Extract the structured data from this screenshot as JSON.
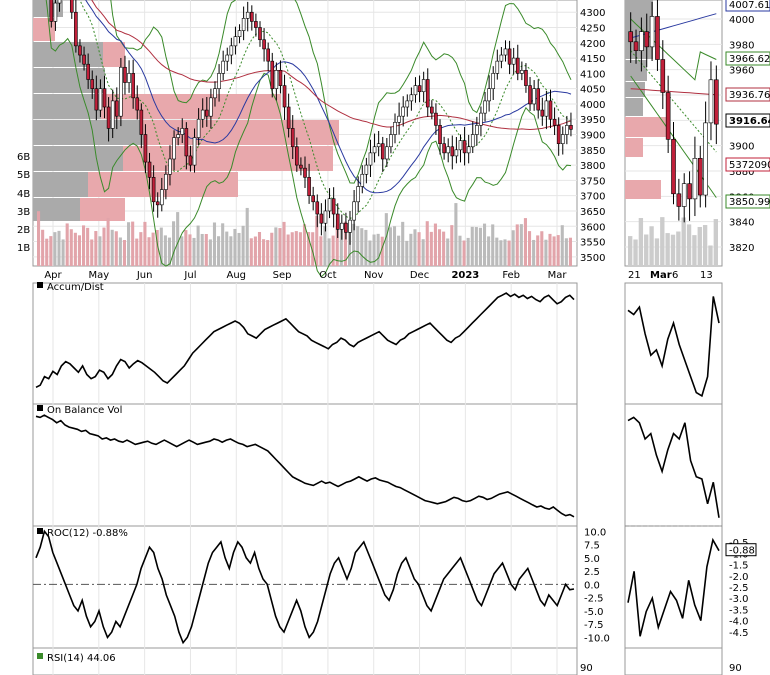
{
  "chart_data": [
    {
      "type": "candlestick",
      "title": "",
      "x_months": [
        "Apr",
        "May",
        "Jun",
        "Jul",
        "Aug",
        "Sep",
        "Oct",
        "Nov",
        "Dec",
        "2023",
        "Feb",
        "Mar"
      ],
      "y_ticks": [
        3500,
        3550,
        3600,
        3650,
        3700,
        3750,
        3800,
        3850,
        3900,
        3950,
        4000,
        4050,
        4100,
        4150,
        4200,
        4250,
        4300
      ],
      "ylim": [
        3470,
        4340
      ],
      "volume_ticks": [
        "1B",
        "2B",
        "3B",
        "4B",
        "5B",
        "6B"
      ],
      "close_series": [
        4520,
        4480,
        4390,
        4270,
        4330,
        4420,
        4530,
        4460,
        4300,
        4190,
        4160,
        4130,
        4080,
        4050,
        3980,
        4050,
        3990,
        3920,
        4010,
        3960,
        4120,
        4070,
        4100,
        4020,
        3980,
        3900,
        3810,
        3760,
        3680,
        3670,
        3720,
        3770,
        3820,
        3890,
        3900,
        3920,
        3830,
        3800,
        3890,
        3950,
        3980,
        3960,
        4020,
        4050,
        4100,
        4140,
        4160,
        4190,
        4220,
        4240,
        4280,
        4300,
        4270,
        4250,
        4210,
        4180,
        4140,
        4050,
        4110,
        4060,
        3990,
        3920,
        3860,
        3800,
        3790,
        3760,
        3700,
        3680,
        3640,
        3610,
        3650,
        3690,
        3640,
        3590,
        3610,
        3580,
        3620,
        3680,
        3730,
        3770,
        3800,
        3840,
        3860,
        3870,
        3820,
        3860,
        3900,
        3940,
        3960,
        3990,
        4010,
        4030,
        4060,
        4040,
        4080,
        3990,
        3970,
        3930,
        3870,
        3840,
        3860,
        3830,
        3850,
        3880,
        3840,
        3860,
        3900,
        3930,
        3970,
        4010,
        4050,
        4100,
        4140,
        4160,
        4180,
        4130,
        4150,
        4100,
        4110,
        4060,
        4000,
        4050,
        3980,
        3960,
        4010,
        3950,
        3930,
        3870,
        3900,
        3930,
        3917
      ],
      "ma50_label": "",
      "ma200_label": ""
    },
    {
      "type": "candlestick",
      "title": "",
      "x_ticks": [
        "21",
        "Mar",
        "6",
        "13"
      ],
      "price_labels": [
        "4007.61",
        "3966.62",
        "3936.76",
        "3916.64",
        "5372090",
        "3850.99"
      ],
      "y_ticks": [
        4000,
        3980,
        3960,
        3940,
        3920,
        3900,
        3880,
        3860,
        3840,
        3820
      ],
      "ylim": [
        3805,
        4015
      ],
      "closes": [
        3982,
        3975,
        3990,
        3978,
        4002,
        3968,
        3942,
        3905,
        3862,
        3852,
        3870,
        3858,
        3890,
        3861,
        3918,
        3952,
        3917
      ]
    },
    {
      "type": "line",
      "title": "Accum/Dist",
      "series": [
        {
          "values": [
            0.1,
            0.12,
            0.2,
            0.18,
            0.25,
            0.22,
            0.3,
            0.34,
            0.32,
            0.28,
            0.24,
            0.3,
            0.22,
            0.18,
            0.2,
            0.26,
            0.24,
            0.18,
            0.22,
            0.3,
            0.36,
            0.34,
            0.28,
            0.32,
            0.35,
            0.33,
            0.3,
            0.27,
            0.24,
            0.2,
            0.16,
            0.14,
            0.18,
            0.22,
            0.26,
            0.3,
            0.36,
            0.42,
            0.46,
            0.5,
            0.54,
            0.58,
            0.62,
            0.64,
            0.66,
            0.68,
            0.7,
            0.72,
            0.7,
            0.66,
            0.6,
            0.58,
            0.56,
            0.6,
            0.64,
            0.66,
            0.68,
            0.7,
            0.72,
            0.74,
            0.7,
            0.66,
            0.62,
            0.6,
            0.58,
            0.54,
            0.52,
            0.5,
            0.48,
            0.46,
            0.5,
            0.52,
            0.56,
            0.54,
            0.5,
            0.48,
            0.52,
            0.54,
            0.56,
            0.58,
            0.6,
            0.62,
            0.58,
            0.54,
            0.52,
            0.5,
            0.54,
            0.56,
            0.6,
            0.62,
            0.64,
            0.66,
            0.68,
            0.7,
            0.66,
            0.62,
            0.58,
            0.54,
            0.52,
            0.56,
            0.58,
            0.62,
            0.66,
            0.7,
            0.74,
            0.78,
            0.82,
            0.86,
            0.9,
            0.94,
            0.96,
            0.98,
            0.95,
            0.97,
            0.94,
            0.96,
            0.93,
            0.95,
            0.92,
            0.9,
            0.94,
            0.96,
            0.92,
            0.88,
            0.9,
            0.94,
            0.96,
            0.92
          ]
        }
      ],
      "inset_values": [
        0.82,
        0.78,
        0.85,
        0.6,
        0.4,
        0.45,
        0.3,
        0.55,
        0.7,
        0.5,
        0.35,
        0.2,
        0.05,
        0.02,
        0.2,
        0.95,
        0.7
      ]
    },
    {
      "type": "line",
      "title": "On Balance Vol",
      "series": [
        {
          "values": [
            0.96,
            0.95,
            0.97,
            0.95,
            0.93,
            0.9,
            0.92,
            0.88,
            0.86,
            0.85,
            0.84,
            0.82,
            0.83,
            0.8,
            0.79,
            0.78,
            0.75,
            0.76,
            0.74,
            0.75,
            0.73,
            0.72,
            0.74,
            0.72,
            0.7,
            0.71,
            0.72,
            0.73,
            0.71,
            0.7,
            0.72,
            0.74,
            0.72,
            0.7,
            0.68,
            0.7,
            0.72,
            0.74,
            0.72,
            0.7,
            0.71,
            0.72,
            0.73,
            0.75,
            0.74,
            0.72,
            0.74,
            0.75,
            0.73,
            0.71,
            0.7,
            0.68,
            0.69,
            0.7,
            0.68,
            0.66,
            0.64,
            0.6,
            0.56,
            0.52,
            0.48,
            0.44,
            0.4,
            0.38,
            0.36,
            0.34,
            0.33,
            0.32,
            0.34,
            0.36,
            0.34,
            0.35,
            0.33,
            0.31,
            0.33,
            0.35,
            0.36,
            0.38,
            0.4,
            0.38,
            0.36,
            0.38,
            0.39,
            0.37,
            0.36,
            0.35,
            0.33,
            0.31,
            0.3,
            0.28,
            0.26,
            0.24,
            0.22,
            0.2,
            0.18,
            0.17,
            0.16,
            0.15,
            0.16,
            0.17,
            0.19,
            0.21,
            0.2,
            0.18,
            0.17,
            0.18,
            0.2,
            0.22,
            0.21,
            0.19,
            0.2,
            0.22,
            0.24,
            0.25,
            0.26,
            0.24,
            0.22,
            0.2,
            0.18,
            0.16,
            0.14,
            0.12,
            0.13,
            0.11,
            0.1,
            0.12,
            0.09,
            0.06,
            0.04,
            0.05,
            0.03
          ]
        }
      ],
      "inset_values": [
        0.92,
        0.95,
        0.9,
        0.75,
        0.8,
        0.6,
        0.45,
        0.65,
        0.8,
        0.75,
        0.9,
        0.55,
        0.4,
        0.38,
        0.15,
        0.35,
        0.02
      ]
    },
    {
      "type": "line",
      "title": "ROC(12) -0.88%",
      "y_ticks": [
        10.0,
        7.5,
        5.0,
        2.5,
        0.0,
        -2.5,
        -5.0,
        -7.5,
        -10.0
      ],
      "ylim": [
        -12,
        11
      ],
      "series": [
        {
          "values": [
            5,
            7,
            10,
            9,
            6,
            4,
            2,
            0,
            -2,
            -4,
            -5,
            -3,
            -6,
            -8,
            -7,
            -5,
            -8,
            -10,
            -9,
            -7,
            -8,
            -6,
            -4,
            -2,
            0,
            3,
            5,
            7,
            6,
            3,
            1,
            -2,
            -4,
            -6,
            -9,
            -11,
            -10,
            -8,
            -5,
            -2,
            1,
            4,
            6,
            7,
            8,
            5,
            3,
            6,
            8,
            7,
            5,
            4,
            6,
            3,
            1,
            0,
            -3,
            -6,
            -8,
            -9,
            -7,
            -5,
            -3,
            -5,
            -8,
            -10,
            -9,
            -7,
            -4,
            -1,
            2,
            4,
            5,
            3,
            1,
            3,
            6,
            7,
            8,
            6,
            4,
            2,
            0,
            -2,
            -3,
            -1,
            2,
            4,
            5,
            3,
            1,
            0,
            -2,
            -4,
            -5,
            -3,
            -1,
            1,
            2,
            3,
            4,
            5,
            3,
            1,
            -1,
            -3,
            -4,
            -2,
            0,
            2,
            3,
            4,
            2,
            0,
            -1,
            1,
            2,
            3,
            1,
            -1,
            -3,
            -4,
            -2,
            -3,
            -4,
            -2,
            0,
            -1,
            -0.88
          ]
        }
      ],
      "inset_y_ticks": [
        "-0.5",
        "-1.0",
        "-1.5",
        "-2.0",
        "-2.5",
        "-3.0",
        "-3.5",
        "-4.0",
        "-4.5"
      ],
      "inset_ylim": [
        -5.0,
        0.0
      ],
      "inset_values": [
        -3.2,
        -1.8,
        -4.7,
        -3.6,
        -3.0,
        -4.3,
        -3.5,
        -2.7,
        -3.1,
        -3.9,
        -2.2,
        -3.3,
        -4.0,
        -1.6,
        -0.4,
        -0.88
      ]
    },
    {
      "type": "line",
      "title": "RSI(14) 44.06",
      "y_ticks": [
        90
      ],
      "inset_y_ticks": [
        90
      ],
      "series": []
    }
  ]
}
